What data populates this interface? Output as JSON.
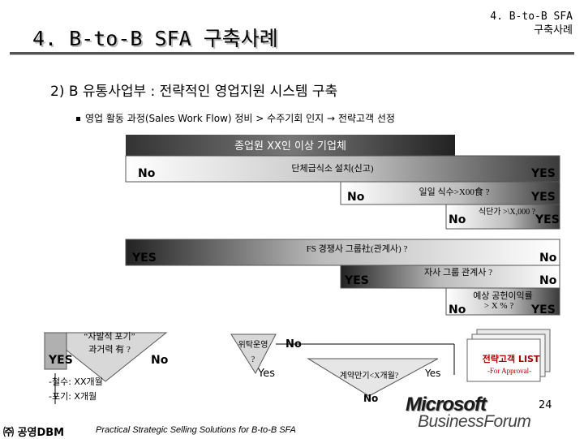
{
  "header": {
    "title": "4. B-to-B SFA 구축사례",
    "corner_line1": "4. B-to-B SFA",
    "corner_line2": "구축사례"
  },
  "subtitle": "2) B 유통사업부 : 전략적인 영업지원 시스템 구축",
  "bullet": "영업 활동 과정(Sales Work Flow) 정비 > 수주기회 인지 → 전략고객 선정",
  "flow": {
    "top_banner": "종업원 XX인 이상 기업체",
    "q1": "단체급식소 설치(신고)",
    "q2": "일일 식수>X00食 ?",
    "q3": "식단가 >\\X,000 ?",
    "q4": "FS 경쟁사 그룹社(관계사) ?",
    "q5": "자사 그룹 관계사 ?",
    "q6_line1": "예상 공헌이익률",
    "q6_line2": "> X % ?",
    "yes": "YES",
    "no": "No",
    "left_q_line1": "“자발적 포기”",
    "left_q_line2": "과거력 有 ?",
    "left_note1": "-철수: XX개월",
    "left_note2": "-포기: X개월",
    "consign_line1": "위탁운영",
    "consign_line2": "?",
    "yes_lower": "Yes",
    "contract": "계약만기<X개월?",
    "target_list": "전략고객 LIST",
    "target_sub": "-For Approval-"
  },
  "footer": {
    "company": "㈜ 공영DBM",
    "tagline": "Practical Strategic Selling Solutions for B-to-B SFA",
    "page": "24",
    "logo_line1": "Microsoft",
    "logo_line2": "BusinessForum"
  }
}
